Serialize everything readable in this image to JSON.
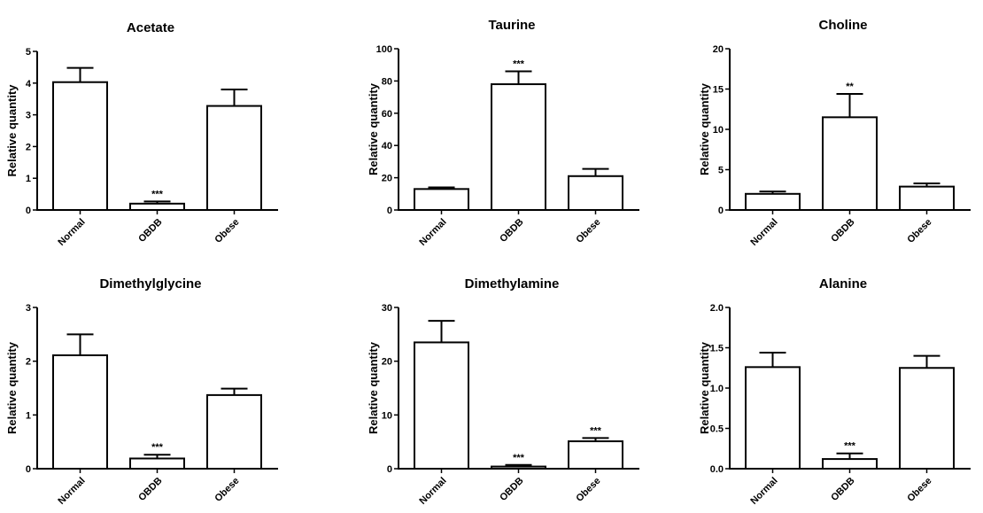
{
  "chart_data": [
    {
      "type": "bar",
      "title": "Acetate",
      "ylabel": "Relative quantity",
      "xlabel": "",
      "categories": [
        "Normal",
        "OBDB",
        "Obese"
      ],
      "values": [
        4.03,
        0.2,
        3.28
      ],
      "errors": [
        0.45,
        0.07,
        0.52
      ],
      "significance": [
        "",
        "***",
        ""
      ],
      "ylim": [
        0,
        5
      ],
      "yticks": [
        "0",
        "1",
        "2",
        "3",
        "4",
        "5"
      ]
    },
    {
      "type": "bar",
      "title": "Taurine",
      "ylabel": "Relative quantity",
      "xlabel": "",
      "categories": [
        "Normal",
        "OBDB",
        "Obese"
      ],
      "values": [
        13,
        78,
        21
      ],
      "errors": [
        1,
        8,
        4.5
      ],
      "significance": [
        "",
        "***",
        ""
      ],
      "ylim": [
        0,
        100
      ],
      "yticks": [
        "0",
        "20",
        "40",
        "60",
        "80",
        "100"
      ]
    },
    {
      "type": "bar",
      "title": "Choline",
      "ylabel": "Relative quantity",
      "xlabel": "",
      "categories": [
        "Normal",
        "OBDB",
        "Obese"
      ],
      "values": [
        2.0,
        11.5,
        2.9
      ],
      "errors": [
        0.3,
        2.9,
        0.4
      ],
      "significance": [
        "",
        "**",
        ""
      ],
      "ylim": [
        0,
        20
      ],
      "yticks": [
        "0",
        "5",
        "10",
        "15",
        "20"
      ]
    },
    {
      "type": "bar",
      "title": "Dimethylglycine",
      "ylabel": "Relative quantity",
      "xlabel": "",
      "categories": [
        "Normal",
        "OBDB",
        "Obese"
      ],
      "values": [
        2.11,
        0.19,
        1.37
      ],
      "errors": [
        0.39,
        0.07,
        0.12
      ],
      "significance": [
        "",
        "***",
        ""
      ],
      "ylim": [
        0,
        3
      ],
      "yticks": [
        "0",
        "1",
        "2",
        "3"
      ]
    },
    {
      "type": "bar",
      "title": "Dimethylamine",
      "ylabel": "Relative quantity",
      "xlabel": "",
      "categories": [
        "Normal",
        "OBDB",
        "Obese"
      ],
      "values": [
        23.5,
        0.4,
        5.1
      ],
      "errors": [
        4,
        0.3,
        0.6
      ],
      "significance": [
        "",
        "***",
        "***"
      ],
      "ylim": [
        0,
        30
      ],
      "yticks": [
        "0",
        "10",
        "20",
        "30"
      ]
    },
    {
      "type": "bar",
      "title": "Alanine",
      "ylabel": "Relative quantity",
      "xlabel": "",
      "categories": [
        "Normal",
        "OBDB",
        "Obese"
      ],
      "values": [
        1.26,
        0.12,
        1.25
      ],
      "errors": [
        0.18,
        0.07,
        0.15
      ],
      "significance": [
        "",
        "***",
        ""
      ],
      "ylim": [
        0,
        2.0
      ],
      "yticks": [
        "0.0",
        "0.5",
        "1.0",
        "1.5",
        "2.0"
      ]
    }
  ]
}
